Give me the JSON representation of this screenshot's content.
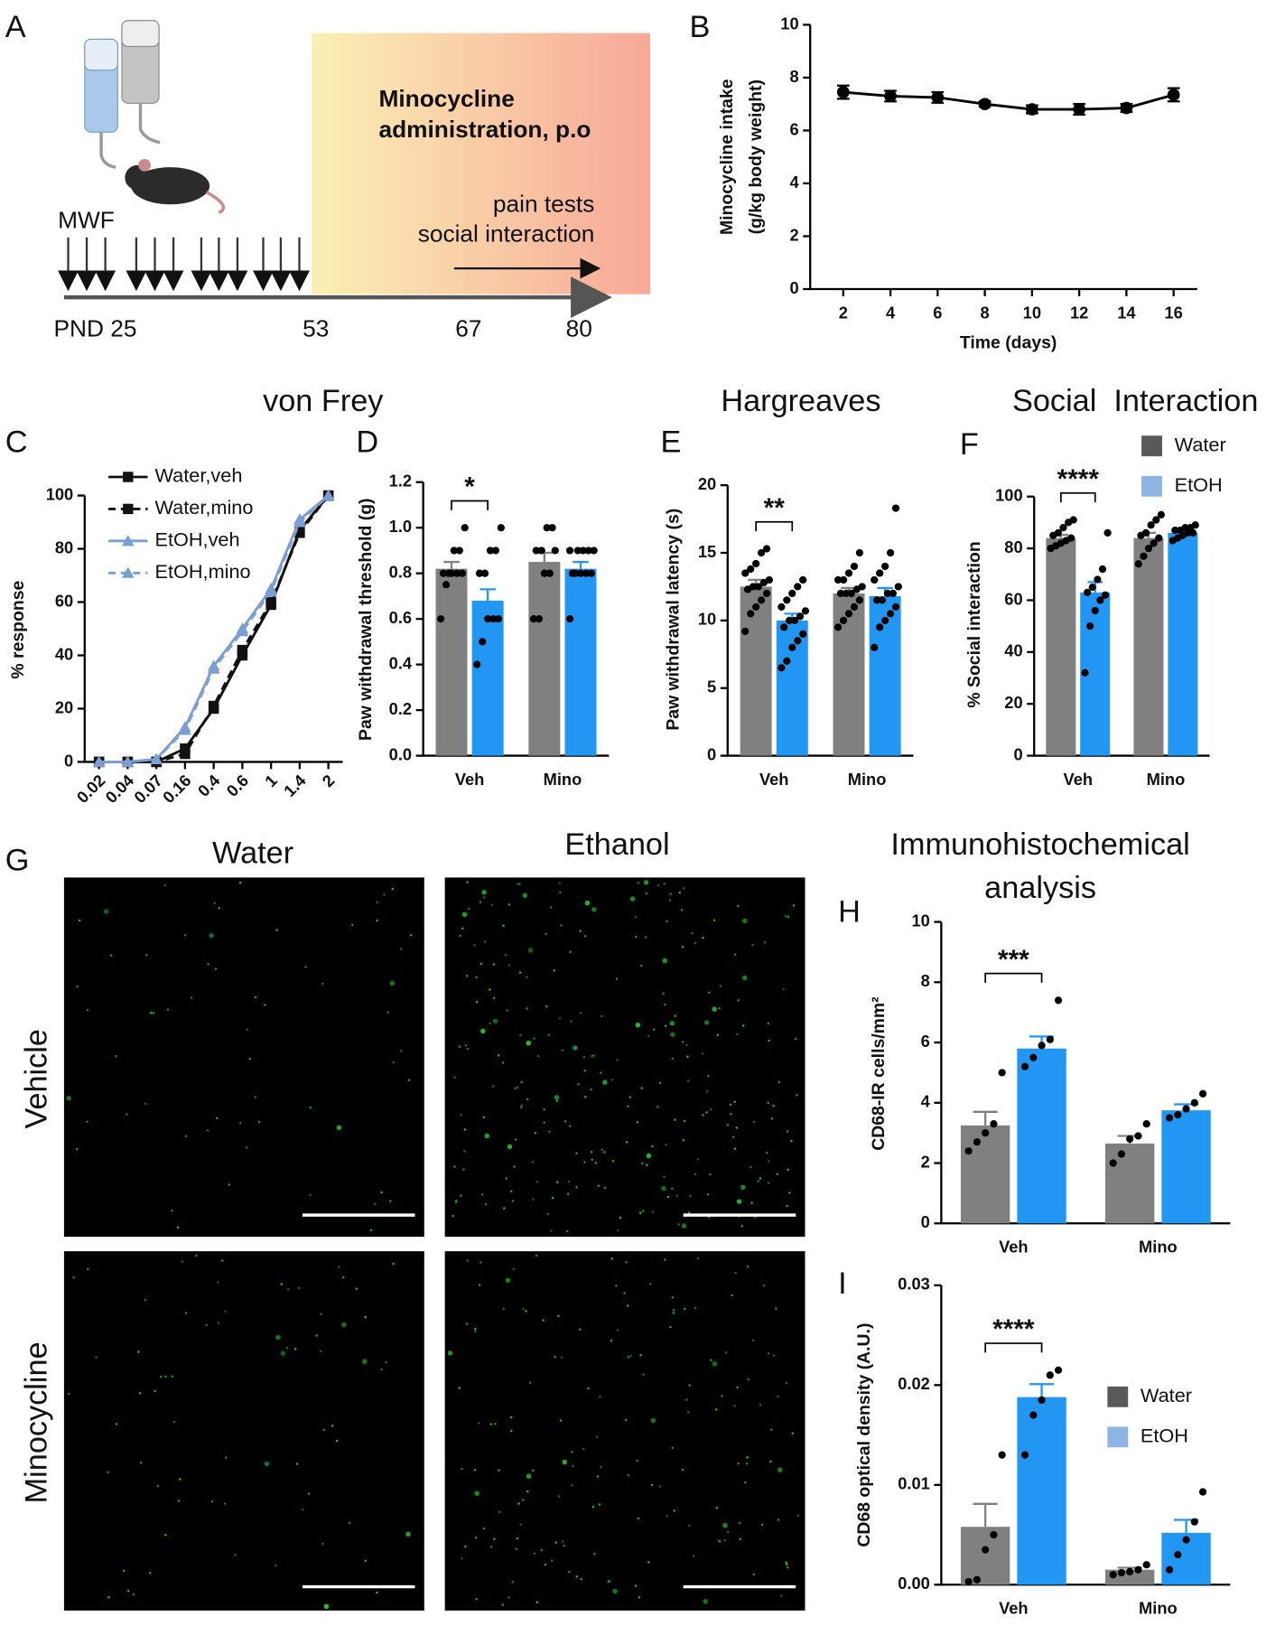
{
  "schematic": {
    "label": "A",
    "treatment_lines": [
      "Minocycline",
      "administration, p.o"
    ],
    "tests": [
      "pain tests",
      "social interaction"
    ],
    "schedule": "MWF",
    "timeline": [
      "PND 25",
      "53",
      "67",
      "80"
    ]
  },
  "micrographs": {
    "label": "G",
    "columns": [
      "Water",
      "Ethanol"
    ],
    "rows": [
      "Vehicle",
      "Minocycline"
    ]
  },
  "chart_data": [
    {
      "type": "line",
      "label": "B",
      "ylabel": [
        "Minocycline intake",
        "(g/kg body weight)"
      ],
      "xlabel": "Time (days)",
      "x": [
        2,
        4,
        6,
        8,
        10,
        12,
        14,
        16
      ],
      "values": [
        7.45,
        7.3,
        7.25,
        7.0,
        6.8,
        6.8,
        6.85,
        7.35
      ],
      "errors": [
        0.25,
        0.2,
        0.2,
        0.1,
        0.15,
        0.2,
        0.15,
        0.25
      ],
      "color": "#000000",
      "xlim": [
        0.6,
        17
      ],
      "xticks": [
        2,
        4,
        6,
        8,
        10,
        12,
        14,
        16
      ],
      "ylim": [
        0,
        10
      ],
      "yticks": [
        0,
        2,
        4,
        6,
        8,
        10
      ]
    },
    {
      "type": "line",
      "label": "C",
      "title": "von Frey",
      "ylabel": "% response",
      "categories": [
        "0.02",
        "0.04",
        "0.07",
        "0.16",
        "0.4",
        "0.6",
        "1",
        "1.4",
        "2"
      ],
      "series": [
        {
          "name": "Water,veh",
          "color": "#111111",
          "dashed": false,
          "marker": "square",
          "values": [
            0,
            0,
            0,
            5,
            20,
            40,
            59,
            87,
            100
          ]
        },
        {
          "name": "Water,mino",
          "color": "#111111",
          "dashed": true,
          "marker": "square",
          "values": [
            0,
            0,
            0,
            3,
            21,
            42,
            60,
            86,
            100
          ]
        },
        {
          "name": "EtOH,veh",
          "color": "#7b9fd4",
          "dashed": false,
          "marker": "triangle",
          "values": [
            0,
            0,
            1,
            13,
            36,
            50,
            65,
            91,
            100
          ]
        },
        {
          "name": "EtOH,mino",
          "color": "#7b9fd4",
          "dashed": true,
          "marker": "triangle",
          "values": [
            0,
            0,
            1,
            12,
            35,
            49,
            64,
            90,
            100
          ]
        }
      ],
      "ylim": [
        0,
        100
      ],
      "yticks": [
        0,
        20,
        40,
        60,
        80,
        100
      ]
    },
    {
      "type": "bar",
      "label": "D",
      "ylabel": "Paw withdrawal threshold (g)",
      "significance": "*",
      "categories": [
        "Veh",
        "Mino"
      ],
      "series": [
        {
          "color": "#808080",
          "values": [
            0.82,
            0.85
          ],
          "errors": [
            0.03,
            0.04
          ],
          "points": [
            [
              0.6,
              0.75,
              0.8,
              0.8,
              0.8,
              0.8,
              0.8,
              0.9,
              0.9,
              1.0
            ],
            [
              0.6,
              0.6,
              0.8,
              0.8,
              0.9,
              0.9,
              0.9,
              1.0,
              1.0
            ]
          ]
        },
        {
          "color": "#2196f3",
          "values": [
            0.68,
            0.82
          ],
          "errors": [
            0.05,
            0.03
          ],
          "points": [
            [
              0.4,
              0.5,
              0.6,
              0.6,
              0.6,
              0.8,
              0.8,
              0.9,
              0.9,
              1.0
            ],
            [
              0.6,
              0.8,
              0.8,
              0.8,
              0.8,
              0.8,
              0.9,
              0.9,
              0.9,
              0.9,
              0.9
            ]
          ]
        }
      ],
      "ylim": [
        0,
        1.2
      ],
      "yticks": [
        {
          "value": 0,
          "label": "0.0"
        },
        0.2,
        0.4,
        0.6,
        0.8,
        {
          "value": 1,
          "label": "1.0"
        },
        1.2
      ]
    },
    {
      "type": "bar",
      "label": "E",
      "title": "Hargreaves",
      "ylabel": "Paw withdrawal latency (s)",
      "significance": "**",
      "categories": [
        "Veh",
        "Mino"
      ],
      "series": [
        {
          "color": "#808080",
          "values": [
            12.5,
            12.0
          ],
          "errors": [
            0.5,
            0.4
          ],
          "points": [
            [
              9.2,
              10.5,
              11,
              11.5,
              12,
              12.3,
              12.5,
              12.5,
              12.8,
              13,
              13.5,
              13.8,
              14.2,
              15,
              15.3
            ],
            [
              9.5,
              10,
              10.5,
              11,
              11.5,
              12,
              12,
              12,
              12.3,
              12.5,
              13,
              13,
              13.5,
              14,
              15
            ]
          ]
        },
        {
          "color": "#2196f3",
          "values": [
            10.0,
            11.8
          ],
          "errors": [
            0.5,
            0.6
          ],
          "points": [
            [
              6.5,
              7,
              8,
              8.5,
              9,
              9.5,
              10,
              10,
              10.3,
              10.7,
              11,
              11.5,
              12,
              12.5,
              13
            ],
            [
              8,
              9.5,
              10,
              10.5,
              11,
              11.5,
              11.5,
              12,
              12,
              12.5,
              13,
              13.5,
              14,
              15,
              18.3
            ]
          ]
        }
      ],
      "ylim": [
        0,
        20
      ],
      "yticks": [
        0,
        5,
        10,
        15,
        20
      ]
    },
    {
      "type": "bar",
      "label": "F",
      "title": "Social  Interaction",
      "ylabel": "% Social interaction",
      "significance": "****",
      "categories": [
        "Veh",
        "Mino"
      ],
      "series": [
        {
          "name": "Water",
          "color": "#808080",
          "legend_color": "#595959",
          "values": [
            84,
            84
          ],
          "errors": [
            1.2,
            2
          ],
          "points": [
            [
              80,
              81,
              82,
              83,
              84,
              85,
              86,
              88,
              90,
              91
            ],
            [
              74,
              77,
              80,
              82,
              84,
              85,
              86,
              89,
              91,
              93
            ]
          ]
        },
        {
          "name": "EtOH",
          "color": "#2196f3",
          "legend_color": "#8db4e2",
          "values": [
            63,
            86
          ],
          "errors": [
            4,
            0.7
          ],
          "points": [
            [
              32,
              50,
              56,
              60,
              62,
              63,
              65,
              68,
              72,
              86
            ],
            [
              83,
              84,
              85,
              86,
              86,
              87,
              87,
              88,
              88,
              89
            ]
          ]
        }
      ],
      "ylim": [
        0,
        100
      ],
      "yticks": [
        0,
        20,
        40,
        60,
        80,
        100
      ]
    },
    {
      "type": "bar",
      "label": "H",
      "title": [
        "Immunohistochemical",
        "analysis"
      ],
      "ylabel": "CD68-IR cells/mm²",
      "significance": "***",
      "categories": [
        "Veh",
        "Mino"
      ],
      "series": [
        {
          "color": "#808080",
          "values": [
            3.25,
            2.65
          ],
          "errors": [
            0.45,
            0.25
          ],
          "points": [
            [
              2.4,
              2.7,
              3.0,
              3.3,
              5.0
            ],
            [
              2.0,
              2.3,
              2.8,
              2.9,
              3.3
            ]
          ]
        },
        {
          "color": "#2196f3",
          "values": [
            5.8,
            3.75
          ],
          "errors": [
            0.4,
            0.2
          ],
          "points": [
            [
              5.2,
              5.5,
              5.9,
              6.1,
              7.4
            ],
            [
              3.5,
              3.6,
              3.8,
              4.0,
              4.3
            ]
          ]
        }
      ],
      "ylim": [
        0,
        10
      ],
      "yticks": [
        0,
        2,
        4,
        6,
        8,
        10
      ]
    },
    {
      "type": "bar",
      "label": "I",
      "ylabel": "CD68 optical density (A.U.)",
      "significance": "****",
      "categories": [
        "Veh",
        "Mino"
      ],
      "series": [
        {
          "name": "Water",
          "color": "#808080",
          "legend_color": "#595959",
          "values": [
            0.0058,
            0.0015
          ],
          "errors": [
            0.0023,
            0.0002
          ],
          "points": [
            [
              0.0003,
              0.0005,
              0.0035,
              0.005,
              0.013
            ],
            [
              0.001,
              0.0012,
              0.0013,
              0.0015,
              0.002
            ]
          ]
        },
        {
          "name": "EtOH",
          "color": "#2196f3",
          "legend_color": "#8db4e2",
          "values": [
            0.0188,
            0.0052
          ],
          "errors": [
            0.0013,
            0.0013
          ],
          "points": [
            [
              0.013,
              0.017,
              0.0185,
              0.021,
              0.0215
            ],
            [
              0.0015,
              0.003,
              0.0045,
              0.0063,
              0.0093
            ]
          ]
        }
      ],
      "ylim": [
        0,
        0.03
      ],
      "yticks": [
        {
          "value": 0,
          "label": "0.00"
        },
        0.01,
        0.02,
        0.03
      ]
    }
  ]
}
